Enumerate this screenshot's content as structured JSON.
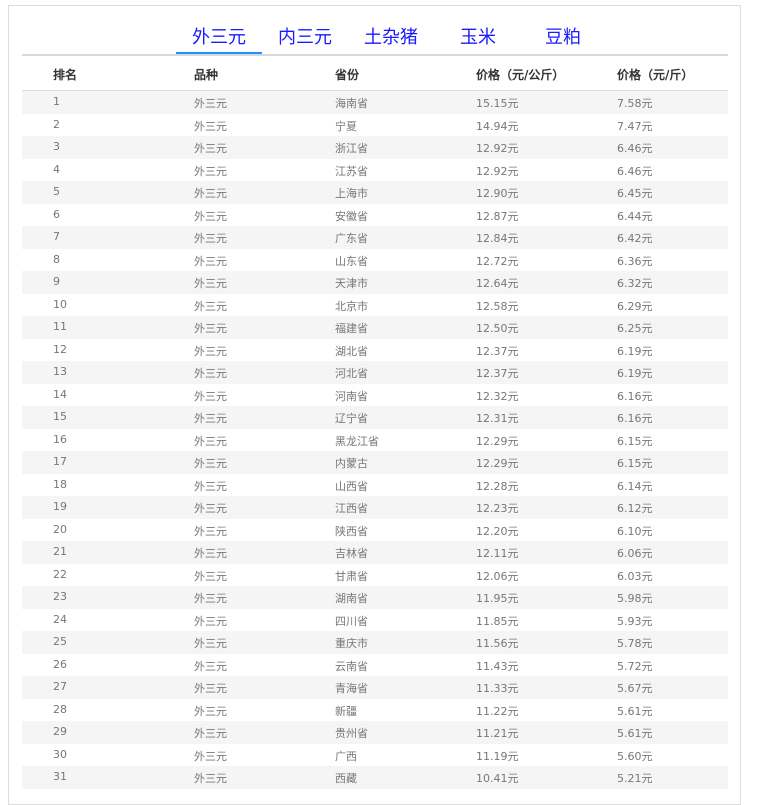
{
  "tabs": [
    "外三元",
    "内三元",
    "土杂猪",
    "玉米",
    "豆粕"
  ],
  "active_tab": 0,
  "colors": {
    "tab_text": "#1a1aff",
    "active_underline": "#1e90ff",
    "row_alt": "#f5f5f5"
  },
  "table": {
    "headers": [
      "排名",
      "品种",
      "省份",
      "价格（元/公斤）",
      "价格（元/斤）"
    ],
    "rows": [
      [
        "1",
        "外三元",
        "海南省",
        "15.15元",
        "7.58元"
      ],
      [
        "2",
        "外三元",
        "宁夏",
        "14.94元",
        "7.47元"
      ],
      [
        "3",
        "外三元",
        "浙江省",
        "12.92元",
        "6.46元"
      ],
      [
        "4",
        "外三元",
        "江苏省",
        "12.92元",
        "6.46元"
      ],
      [
        "5",
        "外三元",
        "上海市",
        "12.90元",
        "6.45元"
      ],
      [
        "6",
        "外三元",
        "安徽省",
        "12.87元",
        "6.44元"
      ],
      [
        "7",
        "外三元",
        "广东省",
        "12.84元",
        "6.42元"
      ],
      [
        "8",
        "外三元",
        "山东省",
        "12.72元",
        "6.36元"
      ],
      [
        "9",
        "外三元",
        "天津市",
        "12.64元",
        "6.32元"
      ],
      [
        "10",
        "外三元",
        "北京市",
        "12.58元",
        "6.29元"
      ],
      [
        "11",
        "外三元",
        "福建省",
        "12.50元",
        "6.25元"
      ],
      [
        "12",
        "外三元",
        "湖北省",
        "12.37元",
        "6.19元"
      ],
      [
        "13",
        "外三元",
        "河北省",
        "12.37元",
        "6.19元"
      ],
      [
        "14",
        "外三元",
        "河南省",
        "12.32元",
        "6.16元"
      ],
      [
        "15",
        "外三元",
        "辽宁省",
        "12.31元",
        "6.16元"
      ],
      [
        "16",
        "外三元",
        "黑龙江省",
        "12.29元",
        "6.15元"
      ],
      [
        "17",
        "外三元",
        "内蒙古",
        "12.29元",
        "6.15元"
      ],
      [
        "18",
        "外三元",
        "山西省",
        "12.28元",
        "6.14元"
      ],
      [
        "19",
        "外三元",
        "江西省",
        "12.23元",
        "6.12元"
      ],
      [
        "20",
        "外三元",
        "陕西省",
        "12.20元",
        "6.10元"
      ],
      [
        "21",
        "外三元",
        "吉林省",
        "12.11元",
        "6.06元"
      ],
      [
        "22",
        "外三元",
        "甘肃省",
        "12.06元",
        "6.03元"
      ],
      [
        "23",
        "外三元",
        "湖南省",
        "11.95元",
        "5.98元"
      ],
      [
        "24",
        "外三元",
        "四川省",
        "11.85元",
        "5.93元"
      ],
      [
        "25",
        "外三元",
        "重庆市",
        "11.56元",
        "5.78元"
      ],
      [
        "26",
        "外三元",
        "云南省",
        "11.43元",
        "5.72元"
      ],
      [
        "27",
        "外三元",
        "青海省",
        "11.33元",
        "5.67元"
      ],
      [
        "28",
        "外三元",
        "新疆",
        "11.22元",
        "5.61元"
      ],
      [
        "29",
        "外三元",
        "贵州省",
        "11.21元",
        "5.61元"
      ],
      [
        "30",
        "外三元",
        "广西",
        "11.19元",
        "5.60元"
      ],
      [
        "31",
        "外三元",
        "西藏",
        "10.41元",
        "5.21元"
      ]
    ]
  }
}
